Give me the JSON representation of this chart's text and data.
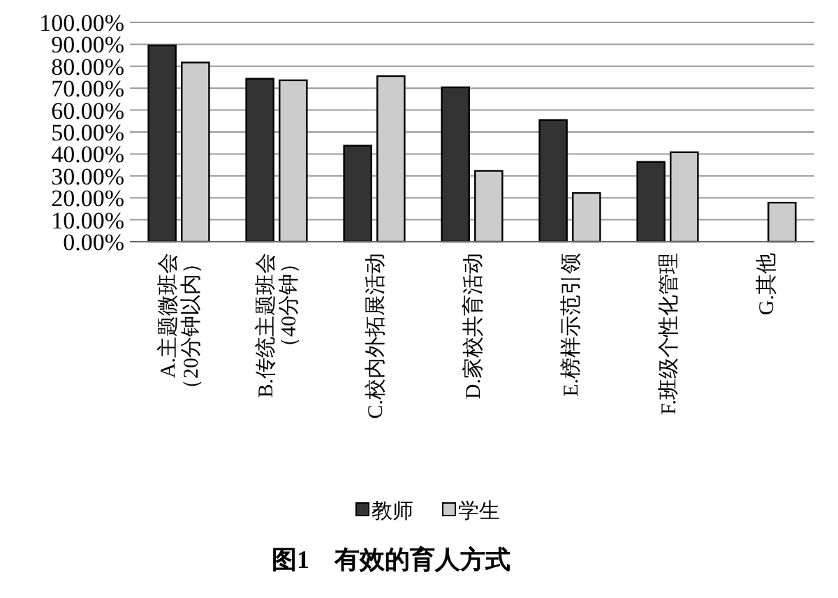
{
  "chart_data": {
    "type": "bar",
    "title": "图1　有效的育人方式",
    "categories": [
      "A.主题微班会（20分钟以内）",
      "B.传统主题班会（40分钟）",
      "C.校内外拓展活动",
      "D.家校共育活动",
      "E.榜样示范引领",
      "F.班级个性化管理",
      "G.其他"
    ],
    "series": [
      {
        "name": "教师",
        "color": "#333333",
        "values": [
          89.5,
          74.3,
          43.8,
          70.4,
          55.5,
          36.4,
          null
        ]
      },
      {
        "name": "学生",
        "color": "#cccccc",
        "values": [
          81.7,
          73.6,
          75.5,
          32.3,
          22.2,
          40.8,
          17.8
        ]
      }
    ],
    "ylim": [
      0,
      100
    ],
    "yticks": [
      {
        "value": 0,
        "label": "0.00%"
      },
      {
        "value": 10,
        "label": "10.00%"
      },
      {
        "value": 20,
        "label": "20.00%"
      },
      {
        "value": 30,
        "label": "30.00%"
      },
      {
        "value": 40,
        "label": "40.00%"
      },
      {
        "value": 50,
        "label": "50.00%"
      },
      {
        "value": 60,
        "label": "60.00%"
      },
      {
        "value": 70,
        "label": "70.00%"
      },
      {
        "value": 80,
        "label": "80.00%"
      },
      {
        "value": 90,
        "label": "90.00%"
      },
      {
        "value": 100,
        "label": "100.00%"
      }
    ],
    "grid": "y",
    "legend": "bottom"
  }
}
